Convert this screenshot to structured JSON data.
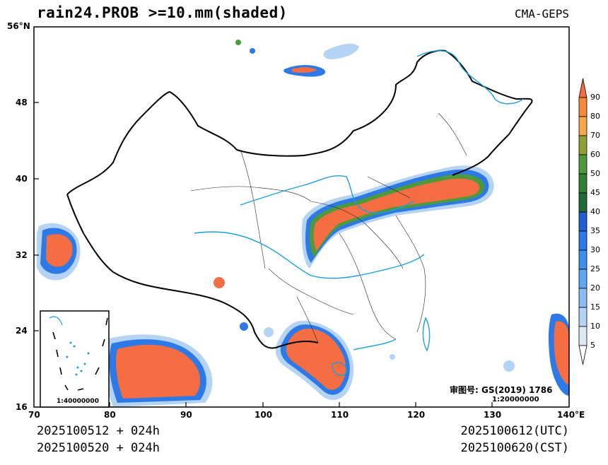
{
  "header": {
    "title": "rain24.PROB >=10.mm(shaded)",
    "source": "CMA-GEPS"
  },
  "axes": {
    "lat_ticks": [
      "56°N",
      "48",
      "40",
      "32",
      "24",
      "16"
    ],
    "lon_ticks": [
      "70",
      "80",
      "90",
      "100",
      "110",
      "120",
      "130",
      "140°E"
    ]
  },
  "colorbar": {
    "levels": [
      "90",
      "80",
      "70",
      "60",
      "50",
      "45",
      "40",
      "35",
      "30",
      "25",
      "20",
      "15",
      "10",
      "5"
    ],
    "colors": [
      "#f46d43",
      "#f58a3c",
      "#f6a64a",
      "#8fa03a",
      "#4c9a3c",
      "#2f7f35",
      "#1f6b3e",
      "#1f5fd0",
      "#2d79e6",
      "#3f8fef",
      "#62a6f2",
      "#8bbcf3",
      "#b5d3f4",
      "#dbe9f7",
      "#ffffff"
    ]
  },
  "annotations": {
    "review_no": "审图号: GS(2019) 1786",
    "main_scale": "1:20000000",
    "inset_scale": "1:40000000"
  },
  "footer": {
    "init_utc": "2025100512 + 024h",
    "init_cst": "2025100520 + 024h",
    "valid_utc": "2025100612(UTC)",
    "valid_cst": "2025100620(CST)"
  }
}
